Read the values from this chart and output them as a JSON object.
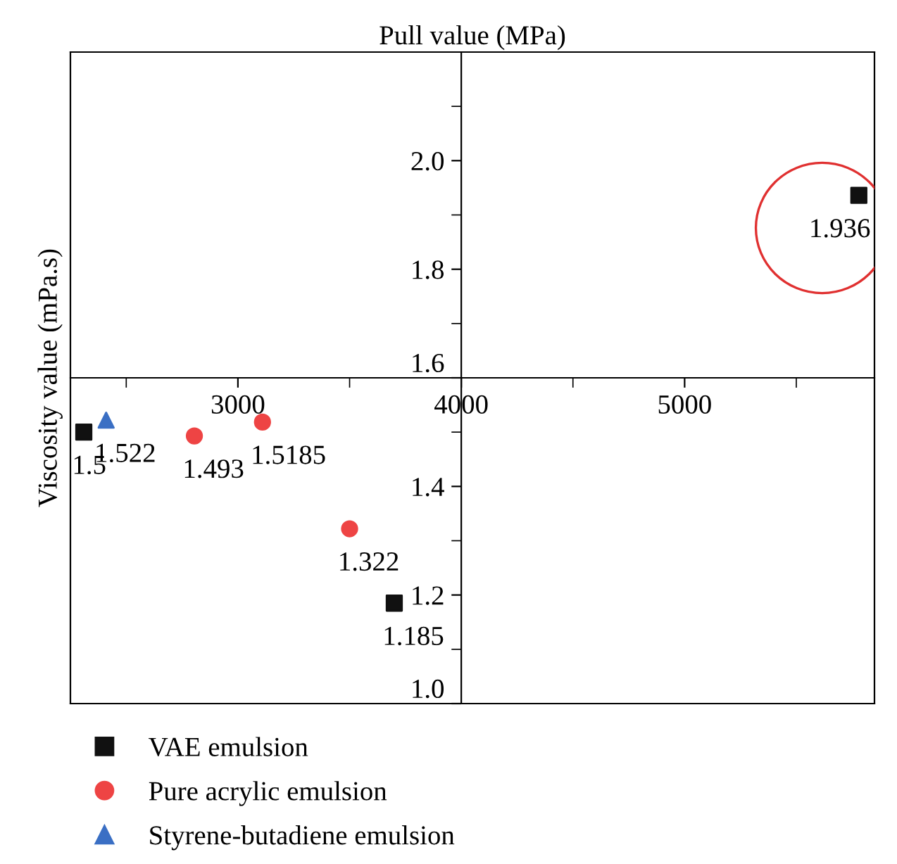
{
  "chart_data": {
    "type": "scatter",
    "xlabel": "Pull value (MPa)",
    "ylabel": "Viscosity value (mPa.s)",
    "xlim": [
      2250,
      5850
    ],
    "ylim": [
      1.0,
      2.2
    ],
    "xticks": [
      3000,
      4000,
      5000
    ],
    "yticks": [
      {
        "value": 1.0,
        "label": "1.0"
      },
      1.2,
      1.4,
      1.6,
      1.8,
      {
        "value": 2.0,
        "label": "2.0"
      }
    ],
    "series": [
      {
        "name": "VAE emulsion",
        "color": "#111111",
        "marker": "square",
        "x": [
          2310,
          3700,
          5780
        ],
        "values": [
          1.5,
          1.185,
          1.936
        ]
      },
      {
        "name": "Pure acrylic emulsion",
        "color": "#ee4444",
        "marker": "circle",
        "x": [
          2805,
          3110,
          3500
        ],
        "values": [
          1.493,
          1.5185,
          1.322
        ]
      },
      {
        "name": "Styrene-butadiene emulsion",
        "color": "#3a6fc4",
        "marker": "triangle",
        "x": [
          2410
        ],
        "values": [
          1.522
        ]
      }
    ],
    "data_labels": true,
    "legend": "bottom left",
    "grid": false
  }
}
